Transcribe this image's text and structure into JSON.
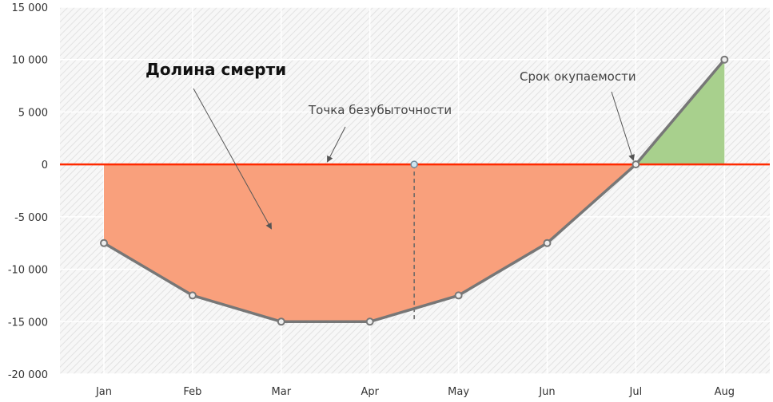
{
  "chart_data": {
    "type": "area",
    "categories": [
      "Jan",
      "Feb",
      "Mar",
      "Apr",
      "May",
      "Jun",
      "Jul",
      "Aug"
    ],
    "values": [
      -7500,
      -12500,
      -15000,
      -15000,
      -12500,
      -7500,
      0,
      10000
    ],
    "ylim": [
      -20000,
      15000
    ],
    "yticks": [
      15000,
      10000,
      5000,
      0,
      -5000,
      -10000,
      -15000,
      -20000
    ],
    "ytick_labels": [
      "15 000",
      "10 000",
      "5 000",
      "0",
      "-5 000",
      "-10 000",
      "-15 000",
      "-20 000"
    ],
    "grid": true,
    "break_even_x": 3.5,
    "annotations": [
      {
        "text": "Долина смерти"
      },
      {
        "text": "Точка безубыточности"
      },
      {
        "text": "Срок окупаемости"
      }
    ],
    "colors": {
      "negative_fill": "#f9a07c",
      "positive_fill": "#a8d08d",
      "zero_line": "#ff2a00",
      "series_line": "#777777",
      "marker_fill": "#eeeeee",
      "breakeven_marker": "#cfe6f2"
    }
  }
}
